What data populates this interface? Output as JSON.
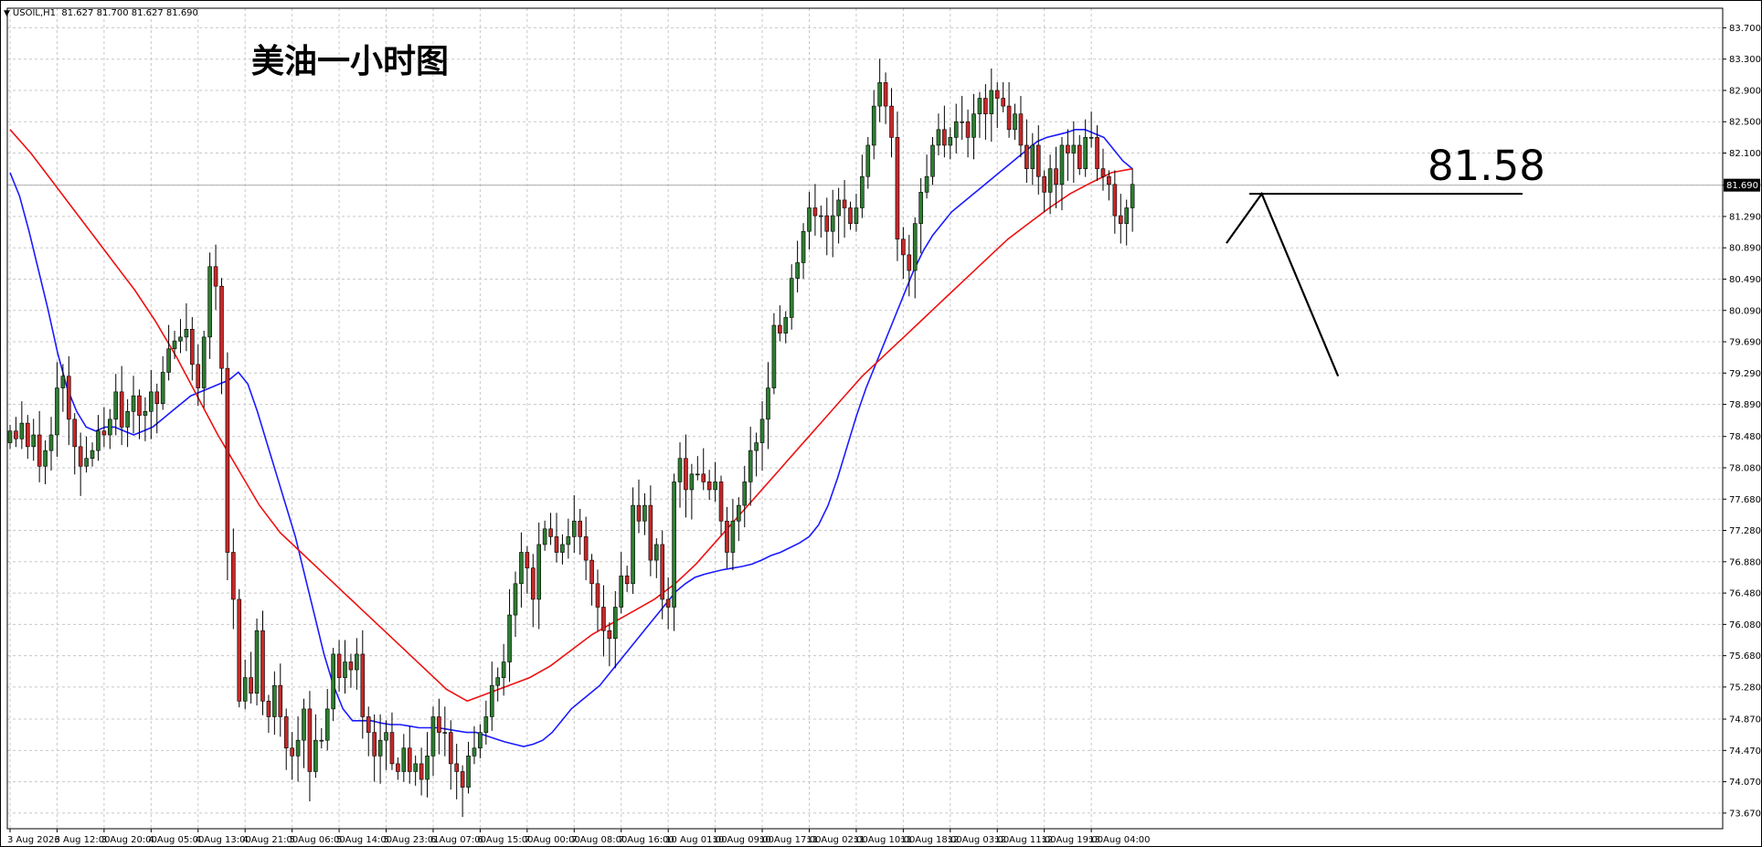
{
  "header": {
    "symbol": "USOIL,H1",
    "ohlc": "81.627 81.700 81.627 81.690"
  },
  "annotations": {
    "title": "美油一小时图",
    "target": "81.58"
  },
  "chart_data": {
    "type": "candlestick",
    "symbol": "USOIL",
    "timeframe": "H1",
    "title": "美油一小时图",
    "current_price": 81.69,
    "current_price_label": "81.690",
    "ylim": [
      73.47,
      83.95
    ],
    "y_ticks": [
      73.67,
      74.07,
      74.47,
      74.87,
      75.28,
      75.68,
      76.08,
      76.48,
      76.88,
      77.28,
      77.68,
      78.08,
      78.48,
      78.89,
      79.29,
      79.69,
      80.09,
      80.49,
      80.89,
      81.29,
      81.69,
      82.1,
      82.5,
      82.9,
      83.3,
      83.7
    ],
    "y_tick_labels": [
      "73.670",
      "74.070",
      "74.470",
      "74.870",
      "75.280",
      "75.680",
      "76.080",
      "76.480",
      "76.880",
      "77.280",
      "77.680",
      "78.080",
      "78.480",
      "78.890",
      "79.290",
      "79.690",
      "80.090",
      "80.490",
      "80.890",
      "81.290",
      "81.690",
      "82.100",
      "82.500",
      "82.900",
      "83.300",
      "83.700"
    ],
    "x_ticks": [
      {
        "index": 0,
        "label": "3 Aug 2026"
      },
      {
        "index": 8,
        "label": "3 Aug 12:00"
      },
      {
        "index": 16,
        "label": "3 Aug 20:00"
      },
      {
        "index": 24,
        "label": "4 Aug 05:00"
      },
      {
        "index": 32,
        "label": "4 Aug 13:00"
      },
      {
        "index": 40,
        "label": "4 Aug 21:00"
      },
      {
        "index": 48,
        "label": "5 Aug 06:00"
      },
      {
        "index": 56,
        "label": "5 Aug 14:00"
      },
      {
        "index": 64,
        "label": "5 Aug 23:01"
      },
      {
        "index": 72,
        "label": "6 Aug 07:00"
      },
      {
        "index": 80,
        "label": "6 Aug 15:00"
      },
      {
        "index": 88,
        "label": "7 Aug 00:00"
      },
      {
        "index": 96,
        "label": "7 Aug 08:00"
      },
      {
        "index": 104,
        "label": "7 Aug 16:00"
      },
      {
        "index": 112,
        "label": "10 Aug 01:00"
      },
      {
        "index": 120,
        "label": "10 Aug 09:00"
      },
      {
        "index": 128,
        "label": "10 Aug 17:00"
      },
      {
        "index": 136,
        "label": "11 Aug 02:00"
      },
      {
        "index": 144,
        "label": "11 Aug 10:00"
      },
      {
        "index": 152,
        "label": "11 Aug 18:00"
      },
      {
        "index": 160,
        "label": "12 Aug 03:00"
      },
      {
        "index": 168,
        "label": "12 Aug 11:00"
      },
      {
        "index": 176,
        "label": "12 Aug 19:00"
      },
      {
        "index": 184,
        "label": "13 Aug 04:00"
      }
    ],
    "series": [
      {
        "name": "",
        "kind": "candles",
        "bull_color": "#2e7d32",
        "bear_color": "#c62828",
        "close": [
          78.55,
          78.45,
          78.65,
          78.35,
          78.5,
          78.1,
          78.3,
          78.5,
          79.1,
          79.25,
          78.7,
          78.35,
          78.1,
          78.2,
          78.3,
          78.55,
          78.5,
          78.7,
          79.05,
          78.6,
          78.8,
          79.0,
          78.75,
          78.8,
          79.05,
          78.9,
          79.3,
          79.6,
          79.7,
          79.75,
          79.85,
          79.4,
          79.1,
          79.75,
          80.65,
          80.4,
          79.35,
          77.0,
          76.4,
          75.1,
          75.4,
          75.2,
          76.0,
          75.1,
          74.9,
          75.3,
          74.9,
          74.5,
          74.4,
          74.6,
          75.0,
          74.2,
          74.6,
          74.6,
          75.0,
          75.7,
          75.4,
          75.6,
          75.5,
          75.7,
          74.9,
          74.7,
          74.4,
          74.6,
          74.7,
          74.3,
          74.2,
          74.5,
          74.2,
          74.3,
          74.1,
          74.4,
          74.9,
          74.7,
          74.7,
          74.3,
          74.2,
          74.0,
          74.4,
          74.5,
          74.7,
          74.9,
          75.3,
          75.4,
          75.6,
          76.2,
          76.6,
          77.0,
          76.8,
          76.4,
          77.1,
          77.3,
          77.2,
          77.0,
          77.1,
          77.2,
          77.4,
          77.2,
          76.9,
          76.6,
          76.3,
          76.0,
          75.9,
          76.3,
          76.7,
          76.6,
          77.6,
          77.4,
          77.6,
          76.9,
          77.1,
          76.4,
          76.3,
          77.9,
          78.2,
          77.8,
          78.0,
          78.0,
          77.9,
          77.8,
          77.9,
          77.4,
          77.0,
          77.4,
          77.6,
          77.9,
          78.3,
          78.4,
          78.7,
          79.1,
          79.9,
          79.8,
          80.0,
          80.5,
          80.7,
          81.1,
          81.4,
          81.3,
          81.3,
          81.1,
          81.3,
          81.5,
          81.4,
          81.2,
          81.4,
          81.8,
          82.2,
          82.7,
          83.0,
          82.7,
          82.3,
          81.0,
          80.8,
          80.6,
          81.2,
          81.6,
          81.8,
          82.2,
          82.4,
          82.2,
          82.3,
          82.5,
          82.5,
          82.3,
          82.6,
          82.8,
          82.6,
          82.9,
          82.8,
          82.7,
          82.4,
          82.6,
          82.2,
          81.9,
          82.2,
          81.8,
          81.6,
          81.9,
          81.7,
          82.2,
          82.1,
          82.2,
          81.9,
          82.3,
          82.3,
          81.9,
          81.8,
          81.7,
          81.3,
          81.2,
          81.4,
          81.7
        ]
      },
      {
        "name": "",
        "kind": "moving-average",
        "color": "#1a1aff",
        "values": [
          81.85,
          81.55,
          81.1,
          80.6,
          80.1,
          79.55,
          79.1,
          78.8,
          78.6,
          78.55,
          78.6,
          78.6,
          78.55,
          78.5,
          78.55,
          78.6,
          78.7,
          78.8,
          78.9,
          79.0,
          79.05,
          79.1,
          79.15,
          79.2,
          79.3,
          79.15,
          78.8,
          78.4,
          78.0,
          77.6,
          77.2,
          76.7,
          76.2,
          75.7,
          75.3,
          75.0,
          74.85,
          74.85,
          74.85,
          74.82,
          74.8,
          74.8,
          74.78,
          74.76,
          74.76,
          74.76,
          74.74,
          74.72,
          74.7,
          74.7,
          74.66,
          74.62,
          74.58,
          74.55,
          74.52,
          74.55,
          74.6,
          74.7,
          74.85,
          75.0,
          75.1,
          75.2,
          75.3,
          75.45,
          75.6,
          75.75,
          75.9,
          76.05,
          76.2,
          76.35,
          76.5,
          76.6,
          76.68,
          76.72,
          76.75,
          76.78,
          76.8,
          76.82,
          76.85,
          76.9,
          76.96,
          77.0,
          77.06,
          77.12,
          77.2,
          77.35,
          77.6,
          77.95,
          78.35,
          78.75,
          79.1,
          79.4,
          79.7,
          80.0,
          80.3,
          80.6,
          80.85,
          81.05,
          81.2,
          81.35,
          81.45,
          81.55,
          81.65,
          81.75,
          81.85,
          81.95,
          82.05,
          82.15,
          82.25,
          82.3,
          82.33,
          82.36,
          82.4,
          82.4,
          82.35,
          82.3,
          82.15,
          82.0,
          81.9
        ]
      },
      {
        "name": "",
        "kind": "moving-average",
        "color": "#ee1111",
        "values": [
          82.4,
          82.1,
          81.75,
          81.4,
          81.05,
          80.7,
          80.35,
          79.95,
          79.5,
          79.0,
          78.5,
          78.05,
          77.6,
          77.25,
          77.0,
          76.75,
          76.5,
          76.25,
          76.0,
          75.75,
          75.5,
          75.25,
          75.1,
          75.2,
          75.3,
          75.4,
          75.55,
          75.75,
          75.95,
          76.1,
          76.25,
          76.4,
          76.6,
          76.85,
          77.15,
          77.45,
          77.75,
          78.05,
          78.35,
          78.65,
          78.95,
          79.25,
          79.5,
          79.75,
          80.0,
          80.25,
          80.5,
          80.75,
          81.0,
          81.2,
          81.4,
          81.58,
          81.72,
          81.85,
          81.9
        ]
      }
    ],
    "horizontal_level": 81.58,
    "projection": {
      "points": [
        {
          "index": 207,
          "price": 80.95
        },
        {
          "index": 213,
          "price": 81.58
        },
        {
          "index": 226,
          "price": 79.25
        }
      ]
    }
  }
}
